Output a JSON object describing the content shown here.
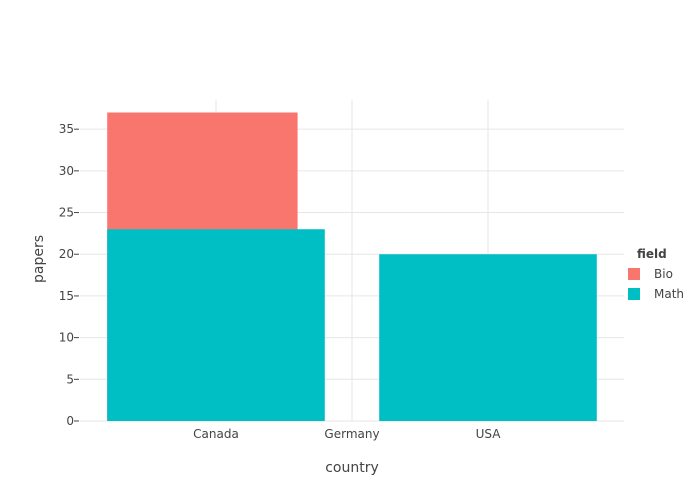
{
  "chart_data": {
    "type": "bar",
    "title": "",
    "xlabel": "country",
    "ylabel": "papers",
    "ylim": [
      0,
      38.5
    ],
    "yticks": [
      0,
      5,
      10,
      15,
      20,
      25,
      30,
      35
    ],
    "categories": [
      "Canada",
      "Germany",
      "USA"
    ],
    "grid": true,
    "legend": {
      "title": "field",
      "placement": "right"
    },
    "bars": [
      {
        "series": "Bio",
        "x_start": -0.8,
        "x_end": 0.6,
        "value": 37,
        "color": "#F8766D"
      },
      {
        "series": "Math",
        "x_start": -0.8,
        "x_end": 0.8,
        "value": 23,
        "color": "#00BFC4"
      },
      {
        "series": "Math",
        "x_start": 1.2,
        "x_end": 2.8,
        "value": 20,
        "color": "#00BFC4"
      }
    ],
    "series": [
      {
        "name": "Bio",
        "color": "#F8766D"
      },
      {
        "name": "Math",
        "color": "#00BFC4"
      }
    ]
  }
}
